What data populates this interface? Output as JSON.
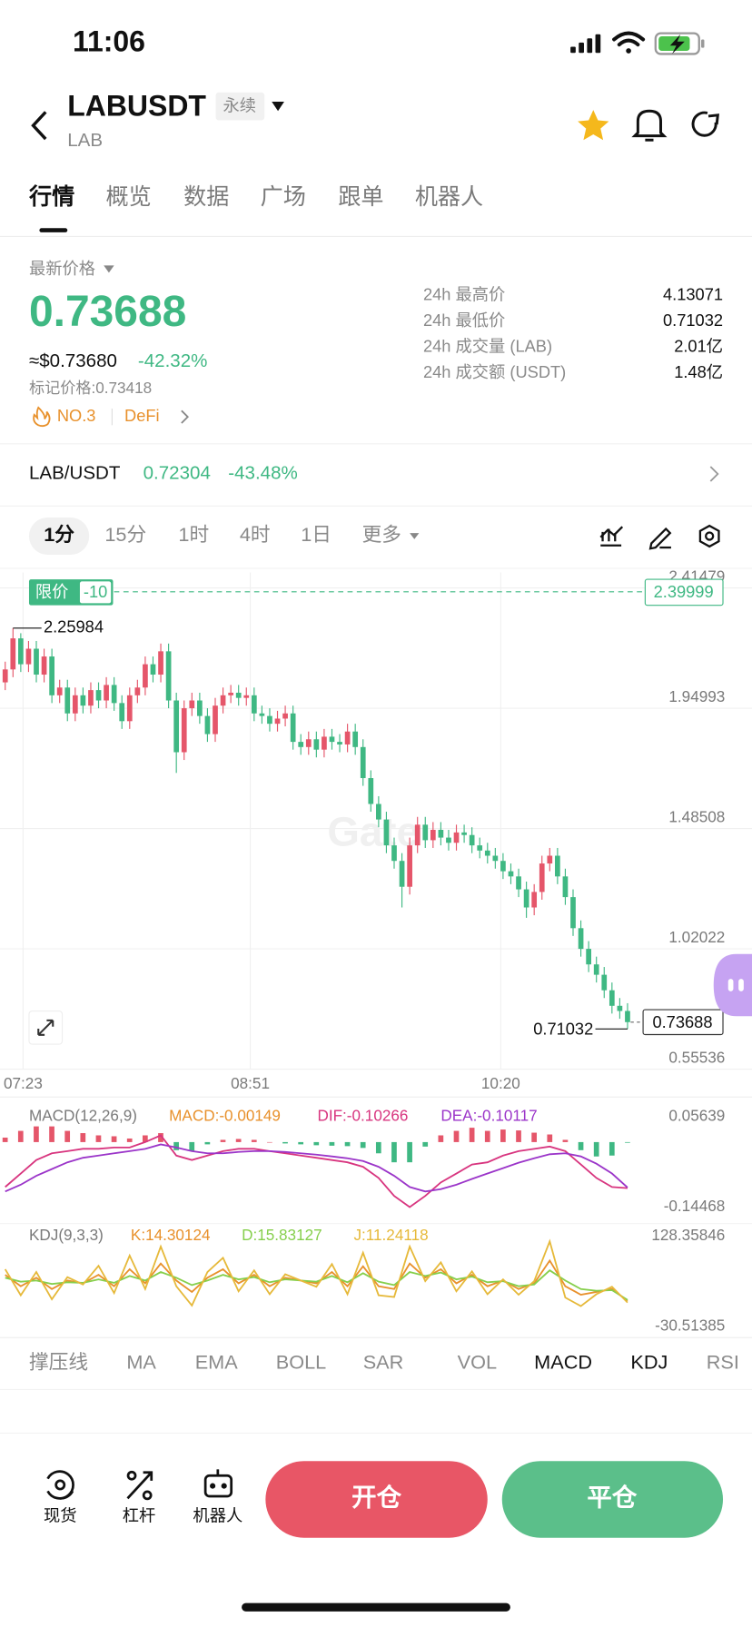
{
  "status_bar": {
    "time": "11:06"
  },
  "header": {
    "symbol": "LABUSDT",
    "contract_type": "永续",
    "base": "LAB"
  },
  "tabs": [
    "行情",
    "概览",
    "数据",
    "广场",
    "跟单",
    "机器人"
  ],
  "ticker": {
    "label": "最新价格",
    "last_price": "0.73688",
    "usd_price": "≈$0.73680",
    "change": "-42.32%",
    "mark_price": "标记价格:0.73418",
    "rank": "NO.3",
    "sector": "DeFi"
  },
  "stats": [
    {
      "label": "24h 最高价",
      "value": "4.13071"
    },
    {
      "label": "24h 最低价",
      "value": "0.71032"
    },
    {
      "label": "24h 成交量 (LAB)",
      "value": "2.01亿"
    },
    {
      "label": "24h 成交额 (USDT)",
      "value": "1.48亿"
    }
  ],
  "spot": {
    "pair": "LAB/USDT",
    "price": "0.72304",
    "change": "-43.48%"
  },
  "intervals": [
    "1分",
    "15分",
    "1时",
    "4时",
    "1日",
    "更多"
  ],
  "watermark": "Gate",
  "chart_data": [
    {
      "type": "candlestick",
      "open": [
        2.05,
        2.1,
        2.22,
        2.12,
        2.18,
        2.08,
        2.15,
        2.0,
        2.03,
        1.93,
        2.0,
        1.96,
        2.02,
        1.98,
        2.04,
        1.97,
        1.9,
        2.0,
        2.03,
        2.12,
        2.08,
        2.17,
        1.98,
        1.78,
        1.95,
        1.98,
        1.92,
        1.85,
        1.96,
        2.0,
        2.01,
        1.99,
        2.0,
        1.93,
        1.92,
        1.89,
        1.91,
        1.93,
        1.82,
        1.8,
        1.83,
        1.79,
        1.84,
        1.82,
        1.81,
        1.86,
        1.8,
        1.68,
        1.58,
        1.52,
        1.42,
        1.36,
        1.26,
        1.42,
        1.5,
        1.44,
        1.48,
        1.45,
        1.43,
        1.47,
        1.46,
        1.42,
        1.4,
        1.38,
        1.36,
        1.32,
        1.3,
        1.25,
        1.18,
        1.24,
        1.35,
        1.38,
        1.3,
        1.22,
        1.1,
        1.02,
        0.96,
        0.92,
        0.86,
        0.8,
        0.78
      ],
      "high": [
        2.13,
        2.25984,
        2.24,
        2.21,
        2.21,
        2.18,
        2.18,
        2.06,
        2.06,
        2.03,
        2.03,
        2.05,
        2.05,
        2.07,
        2.07,
        2.0,
        2.03,
        2.06,
        2.15,
        2.15,
        2.2,
        2.2,
        2.01,
        1.98,
        2.01,
        2.01,
        1.95,
        1.99,
        2.03,
        2.04,
        2.04,
        2.03,
        2.03,
        1.96,
        1.95,
        1.94,
        1.96,
        1.96,
        1.85,
        1.86,
        1.86,
        1.87,
        1.87,
        1.85,
        1.89,
        1.89,
        1.83,
        1.71,
        1.61,
        1.55,
        1.45,
        1.39,
        1.45,
        1.53,
        1.53,
        1.51,
        1.51,
        1.48,
        1.5,
        1.5,
        1.49,
        1.45,
        1.43,
        1.41,
        1.39,
        1.35,
        1.33,
        1.28,
        1.27,
        1.38,
        1.41,
        1.41,
        1.33,
        1.25,
        1.13,
        1.05,
        0.99,
        0.95,
        0.89,
        0.83,
        0.81
      ],
      "low": [
        2.02,
        2.07,
        2.09,
        2.09,
        2.05,
        2.05,
        1.97,
        1.97,
        1.9,
        1.9,
        1.93,
        1.93,
        1.95,
        1.95,
        1.94,
        1.87,
        1.87,
        1.97,
        2.0,
        2.05,
        2.05,
        1.95,
        1.7,
        1.75,
        1.92,
        1.89,
        1.82,
        1.82,
        1.93,
        1.97,
        1.96,
        1.96,
        1.9,
        1.89,
        1.86,
        1.86,
        1.88,
        1.79,
        1.77,
        1.77,
        1.76,
        1.76,
        1.79,
        1.78,
        1.78,
        1.77,
        1.65,
        1.55,
        1.49,
        1.39,
        1.33,
        1.18,
        1.23,
        1.39,
        1.41,
        1.41,
        1.42,
        1.4,
        1.4,
        1.43,
        1.39,
        1.37,
        1.35,
        1.33,
        1.29,
        1.27,
        1.22,
        1.14,
        1.15,
        1.21,
        1.32,
        1.27,
        1.19,
        1.07,
        0.99,
        0.93,
        0.89,
        0.83,
        0.77,
        0.75,
        0.71032
      ],
      "close": [
        2.1,
        2.22,
        2.12,
        2.18,
        2.08,
        2.15,
        2.0,
        2.03,
        1.93,
        2.0,
        1.96,
        2.02,
        1.98,
        2.04,
        1.97,
        1.9,
        2.0,
        2.03,
        2.12,
        2.08,
        2.17,
        1.98,
        1.78,
        1.95,
        1.98,
        1.92,
        1.85,
        1.96,
        2.0,
        2.01,
        1.99,
        2.0,
        1.93,
        1.92,
        1.89,
        1.91,
        1.93,
        1.82,
        1.8,
        1.83,
        1.79,
        1.84,
        1.82,
        1.81,
        1.86,
        1.8,
        1.68,
        1.58,
        1.52,
        1.42,
        1.36,
        1.26,
        1.42,
        1.5,
        1.44,
        1.48,
        1.45,
        1.43,
        1.47,
        1.46,
        1.42,
        1.4,
        1.38,
        1.36,
        1.32,
        1.3,
        1.25,
        1.18,
        1.24,
        1.35,
        1.38,
        1.3,
        1.22,
        1.1,
        1.02,
        0.96,
        0.92,
        0.86,
        0.8,
        0.78,
        0.73688
      ],
      "up_color": "#e5566a",
      "down_color": "#3fb883",
      "xlim": [
        -0.67,
        96
      ],
      "xticks": [
        {
          "value": 2.3,
          "label": "07:23"
        },
        {
          "value": 31.5,
          "label": "08:51"
        },
        {
          "value": 63.7,
          "label": "10:20"
        }
      ],
      "ylim": [
        0.55536,
        2.41479
      ],
      "yticks": [
        2.41479,
        1.94993,
        1.48508,
        1.02022,
        0.55536
      ],
      "grid": true,
      "limit_order": {
        "label": "限价",
        "quantity": -10,
        "price": 2.39999
      }
    },
    {
      "type": "macd",
      "title": "MACD(12,26,9)",
      "xlim": [
        -0.33,
        48
      ],
      "ylim": [
        -0.14468,
        0.05639
      ],
      "yticks": [
        0.05639,
        -0.14468
      ],
      "series": [
        {
          "name": "MACD:-0.00149",
          "color": "#e8912c",
          "up_color": "#e5566a",
          "down_color": "#3fb883",
          "values": [
            0.01,
            0.025,
            0.035,
            0.035,
            0.025,
            0.02,
            0.015,
            0.013,
            0.008,
            0.015,
            0.02,
            -0.018,
            -0.02,
            -0.005,
            0.005,
            0.007,
            0.005,
            0,
            -0.003,
            -0.005,
            -0.007,
            -0.008,
            -0.009,
            -0.013,
            -0.025,
            -0.045,
            -0.045,
            -0.01,
            0.015,
            0.025,
            0.032,
            0.025,
            0.028,
            0.026,
            0.021,
            0.017,
            0.005,
            -0.018,
            -0.032,
            -0.03,
            -0.00149
          ]
        },
        {
          "name": "DIF:-0.10266",
          "color": "#d8357f",
          "values": [
            -0.1,
            -0.07,
            -0.04,
            -0.025,
            -0.02,
            -0.015,
            -0.015,
            -0.012,
            -0.012,
            0,
            0.015,
            -0.03,
            -0.04,
            -0.03,
            -0.02,
            -0.015,
            -0.015,
            -0.02,
            -0.025,
            -0.03,
            -0.035,
            -0.04,
            -0.045,
            -0.055,
            -0.08,
            -0.12,
            -0.145,
            -0.12,
            -0.09,
            -0.07,
            -0.05,
            -0.045,
            -0.03,
            -0.02,
            -0.015,
            -0.01,
            -0.02,
            -0.05,
            -0.08,
            -0.1,
            -0.10266
          ]
        },
        {
          "name": "DEA:-0.10117",
          "color": "#9b35c9",
          "values": [
            -0.11,
            -0.095,
            -0.075,
            -0.06,
            -0.045,
            -0.035,
            -0.03,
            -0.025,
            -0.02,
            -0.015,
            -0.005,
            -0.012,
            -0.02,
            -0.025,
            -0.025,
            -0.022,
            -0.02,
            -0.02,
            -0.022,
            -0.025,
            -0.028,
            -0.032,
            -0.036,
            -0.042,
            -0.055,
            -0.075,
            -0.1,
            -0.11,
            -0.105,
            -0.095,
            -0.082,
            -0.07,
            -0.058,
            -0.046,
            -0.036,
            -0.027,
            -0.025,
            -0.032,
            -0.048,
            -0.07,
            -0.10117
          ]
        }
      ]
    },
    {
      "type": "kdj",
      "title": "KDJ(9,3,3)",
      "xlim": [
        -0.33,
        48
      ],
      "ylim": [
        -30.51385,
        128.35846
      ],
      "yticks": [
        128.35846,
        -30.51385
      ],
      "series": [
        {
          "name": "K:14.30124",
          "color": "#e8912c",
          "values": [
            60,
            40,
            55,
            35,
            50,
            45,
            60,
            40,
            70,
            45,
            80,
            50,
            30,
            55,
            70,
            45,
            60,
            40,
            55,
            50,
            45,
            65,
            40,
            75,
            40,
            35,
            80,
            55,
            70,
            45,
            60,
            40,
            50,
            35,
            45,
            85,
            40,
            25,
            30,
            35,
            14.30124
          ]
        },
        {
          "name": "D:15.83127",
          "color": "#86cf4c",
          "values": [
            55,
            48,
            50,
            44,
            47,
            46,
            52,
            46,
            58,
            50,
            65,
            55,
            42,
            50,
            60,
            52,
            56,
            47,
            52,
            50,
            48,
            58,
            47,
            63,
            48,
            42,
            65,
            58,
            64,
            52,
            57,
            47,
            49,
            40,
            43,
            68,
            50,
            35,
            32,
            33,
            15.83127
          ]
        },
        {
          "name": "J:11.24118",
          "color": "#e6b93a",
          "values": [
            70,
            24,
            65,
            17,
            56,
            43,
            76,
            28,
            94,
            35,
            110,
            40,
            6,
            65,
            90,
            31,
            68,
            26,
            61,
            50,
            39,
            79,
            26,
            99,
            24,
            21,
            110,
            49,
            82,
            31,
            66,
            26,
            52,
            25,
            49,
            119,
            20,
            5,
            26,
            39,
            11.24118
          ]
        }
      ]
    }
  ],
  "indicators": [
    "撑压线",
    "MA",
    "EMA",
    "BOLL",
    "SAR",
    "VOL",
    "MACD",
    "KDJ",
    "RSI"
  ],
  "footer": {
    "nav": [
      "现货",
      "杠杆",
      "机器人"
    ],
    "open": "开仓",
    "close": "平仓"
  }
}
